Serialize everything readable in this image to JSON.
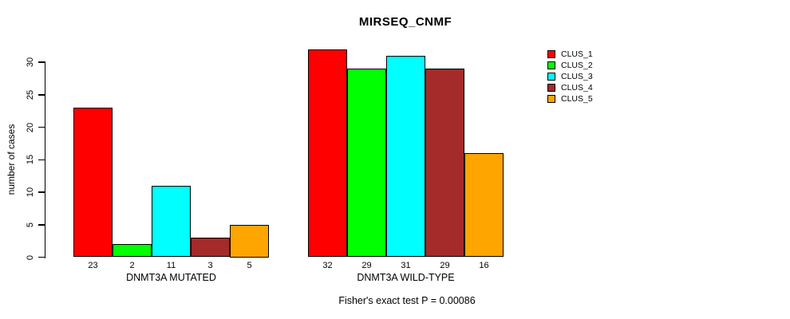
{
  "title": "MIRSEQ_CNMF",
  "caption": "Fisher's exact test P = 0.00086",
  "chart_data": {
    "type": "bar",
    "title": "MIRSEQ_CNMF",
    "xlabel": "",
    "ylabel": "number of cases",
    "categories": [
      "DNMT3A MUTATED",
      "DNMT3A WILD-TYPE"
    ],
    "series": [
      {
        "name": "CLUS_1",
        "color": "#FF0000",
        "values": [
          23,
          32
        ]
      },
      {
        "name": "CLUS_2",
        "color": "#00FF00",
        "values": [
          2,
          29
        ]
      },
      {
        "name": "CLUS_3",
        "color": "#00FFFF",
        "values": [
          11,
          31
        ]
      },
      {
        "name": "CLUS_4",
        "color": "#A52A2A",
        "values": [
          3,
          29
        ]
      },
      {
        "name": "CLUS_5",
        "color": "#FFA500",
        "values": [
          5,
          16
        ]
      }
    ],
    "bar_value_labels_shown": true,
    "yticks": [
      0,
      5,
      10,
      15,
      20,
      25,
      30
    ],
    "ylim": [
      0,
      32
    ],
    "grid": false,
    "legend_position": "right-outside",
    "annotation": "Fisher's exact test P = 0.00086"
  }
}
